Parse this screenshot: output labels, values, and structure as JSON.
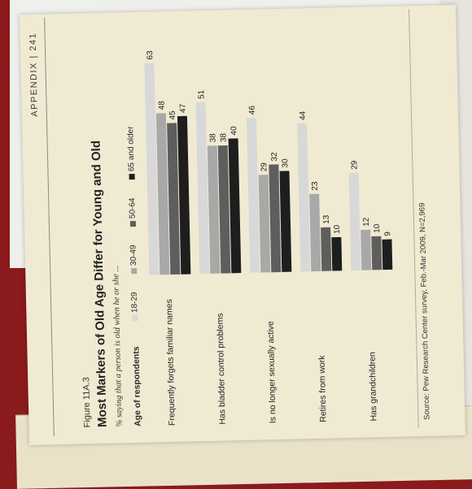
{
  "page": {
    "running_head": "APPENDIX  |  241",
    "figure_label": "Figure 11A.3",
    "title": "Most Markers of Old Age Differ for Young and Old",
    "subtitle": "% saying that a person is old when he or she ...",
    "legend_title": "Age of respondents",
    "source": "Source: Pew Research Center survey, Feb.-Mar 2009, N=2,969"
  },
  "chart_data": {
    "type": "bar",
    "orientation": "horizontal",
    "title": "Most Markers of Old Age Differ for Young and Old",
    "subtitle": "% saying that a person is old when he or she ...",
    "categories": [
      "Frequently forgets familiar names",
      "Has bladder control problems",
      "Is no longer sexually active",
      "Retires from work",
      "Has grandchildren"
    ],
    "series": [
      {
        "name": "18-29",
        "color": "#d8d8d8",
        "values": [
          63,
          51,
          46,
          44,
          29
        ]
      },
      {
        "name": "30-49",
        "color": "#a8a8a8",
        "values": [
          48,
          38,
          29,
          23,
          12
        ]
      },
      {
        "name": "50-64",
        "color": "#5e5e5e",
        "values": [
          45,
          38,
          32,
          13,
          10
        ]
      },
      {
        "name": "65 and older",
        "color": "#1e1e1e",
        "values": [
          47,
          40,
          30,
          10,
          9
        ]
      }
    ],
    "xlim": [
      0,
      70
    ],
    "grid": false,
    "legend_position": "top"
  }
}
